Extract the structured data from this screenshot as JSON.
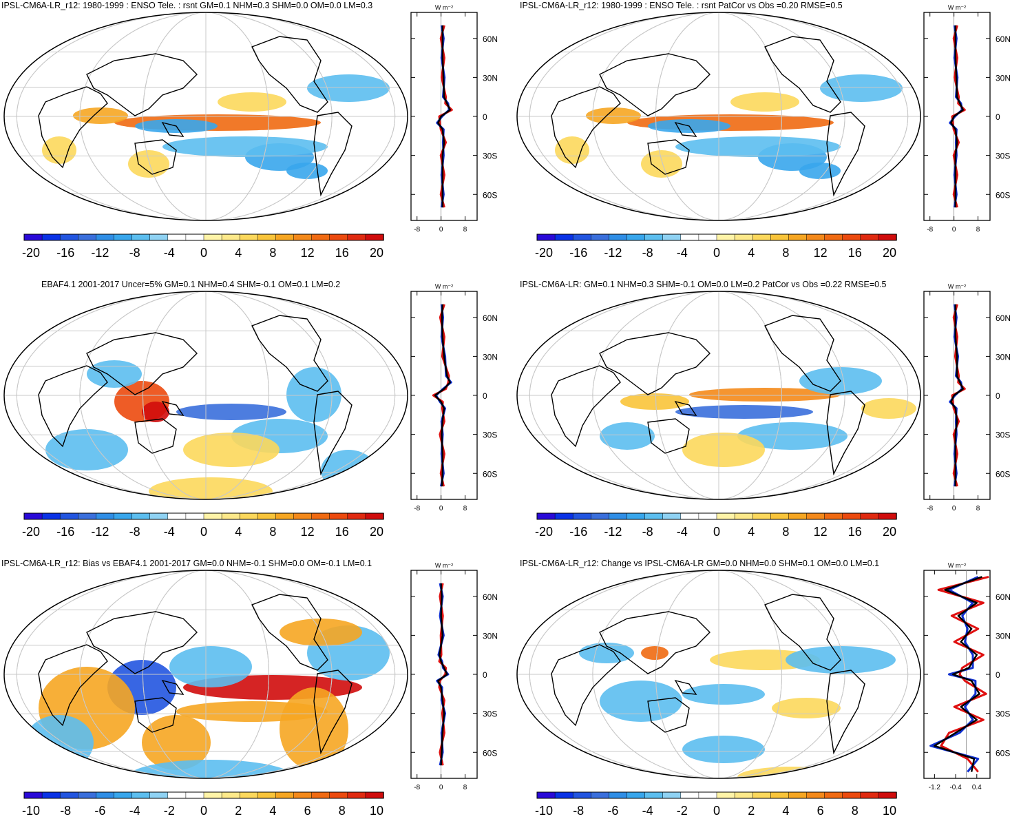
{
  "colors": {
    "scale": [
      "#2a0ad8",
      "#0a32e6",
      "#2255e0",
      "#3a6fdc",
      "#2f8ee6",
      "#38a6ec",
      "#5cbeef",
      "#8fd2f3",
      "#ffffff",
      "#ffffff",
      "#fff4a8",
      "#fde98a",
      "#fcd85c",
      "#f9c43a",
      "#f6a622",
      "#f4891a",
      "#f06a12",
      "#ec4a0e",
      "#e02a10",
      "#d00c0c"
    ],
    "land_line": "#000000",
    "grid": "#c8c8c8",
    "obs_line": "#e01010",
    "model_line": "#1030d0",
    "mean_line": "#000000"
  },
  "panels": [
    {
      "title": "IPSL-CM6A-LR_r12: 1980-1999 : ENSO Tele. : rsnt GM=0.1 NHM=0.3 SHM=0.0 OM=0.0 LM=0.3",
      "cbar": [
        "-20",
        "-16",
        "-12",
        "-8",
        "-4",
        "0",
        "4",
        "8",
        "12",
        "16",
        "20"
      ],
      "zonal_ticks": [
        "-8",
        "0",
        "8"
      ],
      "units": "W m⁻²"
    },
    {
      "title": "IPSL-CM6A-LR_r12: 1980-1999 : ENSO Tele. : rsnt PatCor vs Obs =0.20 RMSE=0.5",
      "cbar": [
        "-20",
        "-16",
        "-12",
        "-8",
        "-4",
        "0",
        "4",
        "8",
        "12",
        "16",
        "20"
      ],
      "zonal_ticks": [
        "-8",
        "0",
        "8"
      ],
      "units": "W m⁻²"
    },
    {
      "title": "EBAF4.1 2001-2017 Uncer=5% GM=0.1 NHM=0.4 SHM=-0.1 OM=0.1 LM=0.2",
      "cbar": [
        "-20",
        "-16",
        "-12",
        "-8",
        "-4",
        "0",
        "4",
        "8",
        "12",
        "16",
        "20"
      ],
      "zonal_ticks": [
        "-8",
        "0",
        "8"
      ],
      "units": "W m⁻²"
    },
    {
      "title": "IPSL-CM6A-LR: GM=0.1 NHM=0.3 SHM=-0.1 OM=0.0 LM=0.2 PatCor vs Obs =0.22 RMSE=0.5",
      "cbar": [
        "-20",
        "-16",
        "-12",
        "-8",
        "-4",
        "0",
        "4",
        "8",
        "12",
        "16",
        "20"
      ],
      "zonal_ticks": [
        "-8",
        "0",
        "8"
      ],
      "units": "W m⁻²"
    },
    {
      "title": "IPSL-CM6A-LR_r12: Bias vs EBAF4.1 2001-2017 GM=0.0 NHM=-0.1 SHM=0.0 OM=-0.1 LM=0.1",
      "cbar": [
        "-10",
        "-8",
        "-6",
        "-4",
        "-2",
        "0",
        "2",
        "4",
        "6",
        "8",
        "10"
      ],
      "zonal_ticks": [
        "-8",
        "0",
        "8"
      ],
      "units": "W m⁻²"
    },
    {
      "title": "IPSL-CM6A-LR_r12: Change vs IPSL-CM6A-LR GM=0.0 NHM=0.0 SHM=0.1 OM=0.0 LM=0.1",
      "cbar": [
        "-10",
        "-8",
        "-6",
        "-4",
        "-2",
        "0",
        "2",
        "4",
        "6",
        "8",
        "10"
      ],
      "zonal_ticks": [
        "-1.2",
        "-0.4",
        "0.4"
      ],
      "units": "W m⁻²"
    }
  ],
  "lat_labels": [
    "60N",
    "30N",
    "0",
    "30S",
    "60S"
  ],
  "chart_data": [
    {
      "type": "heatmap",
      "title": "IPSL-CM6A-LR_r12: 1980-1999 : ENSO Tele. : rsnt GM=0.1 NHM=0.3 SHM=0.0 OM=0.0 LM=0.3",
      "colorbar_range": [
        -20,
        20
      ],
      "zonal_profile": {
        "lat": [
          70,
          60,
          45,
          30,
          15,
          10,
          5,
          0,
          -5,
          -10,
          -20,
          -30,
          -45,
          -60,
          -70
        ],
        "values": [
          0.5,
          0.5,
          0.5,
          0.8,
          1,
          2,
          3,
          0,
          -1,
          0.5,
          1,
          0.5,
          0.5,
          0.5,
          0.5
        ]
      }
    },
    {
      "type": "heatmap",
      "title": "IPSL-CM6A-LR_r12: 1980-1999 : ENSO Tele. : rsnt PatCor vs Obs =0.20 RMSE=0.5",
      "colorbar_range": [
        -20,
        20
      ],
      "zonal_profile": {
        "lat": [
          70,
          60,
          45,
          30,
          15,
          10,
          5,
          0,
          -5,
          -10,
          -20,
          -30,
          -45,
          -60,
          -70
        ],
        "values": [
          0.5,
          0.5,
          0.5,
          0.8,
          1,
          2,
          3,
          0,
          -1,
          0.5,
          1,
          0.5,
          0.5,
          0.5,
          0.5
        ]
      }
    },
    {
      "type": "heatmap",
      "title": "EBAF4.1 2001-2017 Uncer=5% GM=0.1 NHM=0.4 SHM=-0.1 OM=0.1 LM=0.2",
      "colorbar_range": [
        -20,
        20
      ],
      "zonal_profile": {
        "lat": [
          70,
          60,
          45,
          30,
          15,
          10,
          5,
          0,
          -5,
          -10,
          -20,
          -30,
          -45,
          -60,
          -70
        ],
        "values": [
          0.5,
          0.3,
          0.5,
          1,
          2,
          3,
          1,
          -2,
          0,
          1,
          0.5,
          0.2,
          0.5,
          0.5,
          0.3
        ]
      }
    },
    {
      "type": "heatmap",
      "title": "IPSL-CM6A-LR: GM=0.1 NHM=0.3 SHM=-0.1 OM=0.0 LM=0.2 PatCor vs Obs =0.22 RMSE=0.5",
      "colorbar_range": [
        -20,
        20
      ],
      "zonal_profile": {
        "lat": [
          70,
          60,
          45,
          30,
          15,
          10,
          5,
          0,
          -5,
          -10,
          -20,
          -30,
          -45,
          -60,
          -70
        ],
        "values": [
          0.5,
          0.5,
          0.5,
          1,
          1,
          2,
          3,
          0,
          -1,
          0.5,
          1,
          0.5,
          0.5,
          0.5,
          0.5
        ]
      }
    },
    {
      "type": "heatmap",
      "title": "IPSL-CM6A-LR_r12: Bias vs EBAF4.1 2001-2017 GM=0.0 NHM=-0.1 SHM=0.0 OM=-0.1 LM=0.1",
      "colorbar_range": [
        -10,
        10
      ],
      "zonal_profile": {
        "lat": [
          70,
          60,
          45,
          30,
          15,
          10,
          5,
          0,
          -5,
          -10,
          -20,
          -30,
          -45,
          -60,
          -70
        ],
        "values": [
          0,
          0.2,
          0,
          0.5,
          -0.5,
          0,
          1,
          2,
          -1,
          0,
          0.5,
          1,
          0.5,
          0.2,
          0
        ]
      }
    },
    {
      "type": "heatmap",
      "title": "IPSL-CM6A-LR_r12: Change vs IPSL-CM6A-LR GM=0.0 NHM=0.0 SHM=0.1 OM=0.0 LM=0.1",
      "colorbar_range": [
        -10,
        10
      ],
      "zonal_profile": {
        "lat": [
          75,
          65,
          55,
          45,
          35,
          25,
          15,
          5,
          0,
          -5,
          -15,
          -25,
          -35,
          -45,
          -55,
          -65,
          -75
        ],
        "values": [
          0.6,
          -0.8,
          0.4,
          -0.3,
          0.2,
          -0.2,
          0.4,
          0.1,
          -0.5,
          0.2,
          0.5,
          -0.2,
          0.4,
          -0.4,
          -1.2,
          0.3,
          0.2
        ]
      }
    }
  ]
}
